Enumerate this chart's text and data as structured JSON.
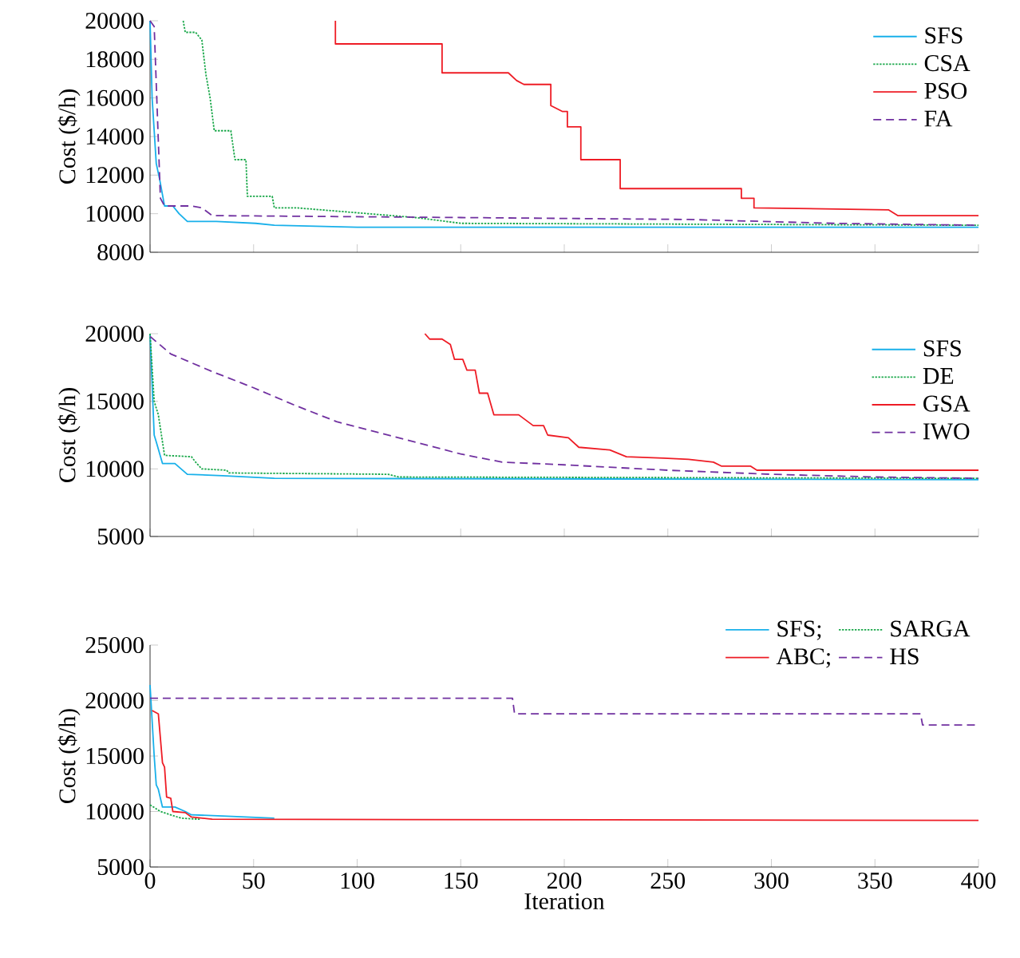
{
  "chart_data": [
    {
      "type": "line",
      "ylabel": "Cost ($/h)",
      "xlim": [
        0,
        400
      ],
      "xticks": [
        0,
        50,
        100,
        150,
        200,
        250,
        300,
        350,
        400
      ],
      "ylim": [
        8000,
        20000
      ],
      "yticks": [
        8000,
        10000,
        12000,
        14000,
        16000,
        18000,
        20000
      ],
      "tick_labels": "y",
      "legend": "top right",
      "series": [
        {
          "name": "SFS",
          "color": "#18b0ea",
          "line_style": "solid",
          "x": [
            0,
            1,
            3,
            4.6,
            7,
            11,
            14,
            18,
            32,
            51,
            60,
            100,
            400
          ],
          "values": [
            20000,
            16000,
            12600,
            11800,
            10400,
            10400,
            10000,
            9600,
            9600,
            9500,
            9400,
            9300,
            9300
          ]
        },
        {
          "name": "CSA",
          "color": "#1aa84a",
          "line_style": "dotted",
          "x": [
            16,
            17,
            22,
            25,
            27,
            29,
            31,
            39,
            41,
            46.3,
            47,
            59,
            60,
            71,
            94,
            128,
            150,
            400
          ],
          "values": [
            20000,
            19400,
            19400,
            19000,
            17200,
            16000,
            14300,
            14300,
            12800,
            12800,
            10900,
            10900,
            10300,
            10300,
            10100,
            9800,
            9500,
            9400
          ]
        },
        {
          "name": "PSO",
          "color": "#ee1c25",
          "line_style": "solid",
          "x": [
            89.5,
            89.5,
            141,
            141,
            173,
            177,
            180.5,
            193.5,
            193.5,
            199,
            201.5,
            201.5,
            208,
            208,
            227,
            227,
            285.5,
            285.5,
            291.6,
            291.6,
            356.5,
            361,
            400
          ],
          "values": [
            20000,
            18800,
            18800,
            17300,
            17300,
            16900,
            16700,
            16700,
            15600,
            15300,
            15300,
            14500,
            14500,
            12800,
            12800,
            11300,
            11300,
            10800,
            10800,
            10300,
            10200,
            9900,
            9900
          ]
        },
        {
          "name": "FA",
          "color": "#7030a0",
          "line_style": "dashed",
          "x": [
            0,
            2,
            5,
            7,
            20,
            25,
            30,
            150,
            260,
            330,
            400
          ],
          "values": [
            20000,
            19700,
            10800,
            10400,
            10400,
            10300,
            9900,
            9800,
            9700,
            9500,
            9400
          ]
        }
      ]
    },
    {
      "type": "line",
      "ylabel": "Cost ($/h)",
      "xlim": [
        0,
        400
      ],
      "xticks": [
        0,
        50,
        100,
        150,
        200,
        250,
        300,
        350,
        400
      ],
      "ylim": [
        5000,
        20000
      ],
      "yticks": [
        5000,
        10000,
        15000,
        20000
      ],
      "tick_labels": "y",
      "legend": "top right",
      "series": [
        {
          "name": "SFS",
          "color": "#18b0ea",
          "line_style": "solid",
          "x": [
            0,
            2,
            3,
            6,
            12,
            15,
            18,
            35,
            60,
            400
          ],
          "values": [
            20000,
            12500,
            12000,
            10400,
            10400,
            10000,
            9600,
            9500,
            9300,
            9200
          ]
        },
        {
          "name": "DE",
          "color": "#1aa84a",
          "line_style": "dotted",
          "x": [
            0,
            2,
            4,
            7,
            20,
            22,
            25,
            37,
            38,
            115,
            120,
            400
          ],
          "values": [
            20000,
            15000,
            14000,
            11000,
            10900,
            10500,
            10000,
            9900,
            9700,
            9600,
            9400,
            9300
          ]
        },
        {
          "name": "GSA",
          "color": "#ee1c25",
          "line_style": "solid",
          "x": [
            132.7,
            135,
            141,
            145,
            147,
            151,
            153,
            157,
            159,
            163,
            166,
            178,
            185,
            190,
            192,
            202,
            207,
            222,
            230,
            248,
            260,
            272,
            276,
            290,
            293,
            400
          ],
          "values": [
            20000,
            19600,
            19600,
            19200,
            18100,
            18100,
            17300,
            17300,
            15600,
            15600,
            14000,
            14000,
            13200,
            13200,
            12500,
            12300,
            11600,
            11400,
            10900,
            10800,
            10700,
            10500,
            10200,
            10200,
            9900,
            9900
          ]
        },
        {
          "name": "IWO",
          "color": "#7030a0",
          "line_style": "dashed",
          "x": [
            0,
            10,
            30,
            50,
            70,
            90,
            110,
            130,
            150,
            170,
            200,
            250,
            300,
            350,
            400
          ],
          "values": [
            19800,
            18500,
            17200,
            16000,
            14700,
            13500,
            12700,
            11900,
            11100,
            10500,
            10300,
            9900,
            9600,
            9400,
            9300
          ]
        }
      ]
    },
    {
      "type": "line",
      "xlabel": "Iteration",
      "ylabel": "Cost ($/h)",
      "xlim": [
        0,
        400
      ],
      "xticks": [
        0,
        50,
        100,
        150,
        200,
        250,
        300,
        350,
        400
      ],
      "ylim": [
        5000,
        25000
      ],
      "yticks": [
        5000,
        10000,
        15000,
        20000,
        25000
      ],
      "legend": "top right",
      "series": [
        {
          "name": "SFS;",
          "color": "#18b0ea",
          "line_style": "solid",
          "x": [
            0,
            2,
            3,
            4,
            6,
            12,
            17,
            20,
            35,
            60
          ],
          "values": [
            21400,
            15000,
            12400,
            12000,
            10400,
            10400,
            10000,
            9700,
            9600,
            9400
          ]
        },
        {
          "name": "SARGA",
          "color": "#1aa84a",
          "line_style": "dotted",
          "x": [
            0,
            5,
            15,
            24
          ],
          "values": [
            10600,
            10000,
            9400,
            9300
          ]
        },
        {
          "name": "ABC;",
          "color": "#ee1c25",
          "line_style": "solid",
          "x": [
            1,
            4,
            6,
            7,
            8,
            10,
            11,
            17,
            20,
            30,
            400
          ],
          "values": [
            19100,
            18800,
            14400,
            14000,
            11300,
            11200,
            10000,
            9900,
            9500,
            9300,
            9200
          ]
        },
        {
          "name": "HS",
          "color": "#7030a0",
          "line_style": "dashed",
          "x": [
            0,
            175,
            176,
            372,
            373,
            400
          ],
          "values": [
            20200,
            20200,
            18800,
            18800,
            17800,
            17800
          ]
        }
      ]
    }
  ]
}
